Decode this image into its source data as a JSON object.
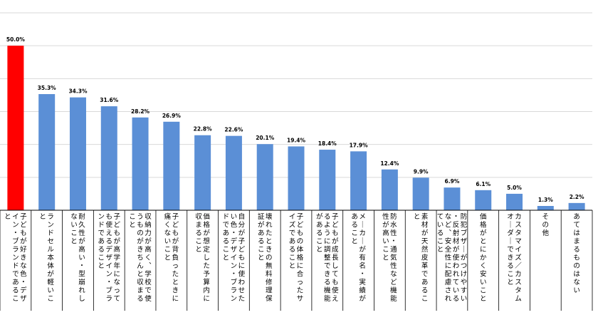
{
  "chart_data": {
    "type": "bar",
    "ylim": [
      0,
      60
    ],
    "grid": true,
    "unit": "%",
    "highlight_color": "#ff0000",
    "bar_color": "#5b8fd6",
    "categories": [
      "子どもが好きな色・デザイン・ブランドであること",
      "ランドセル本体が軽いこと",
      "耐久性が高い・型崩れしないこと",
      "子どもが高学年になっても使えるデザイン・ブランドであること",
      "収納力が高く、学校で使うものがきちんと収まること",
      "子どもが背負ったときに痛くないこと",
      "価格が想定した予算内に収まること",
      "自分が子どもに使わせたい色・デザイン・ブランドであること",
      "壊れたときの無料修理保証があること",
      "子どもの体格に合ったサイズであること",
      "子どもが成長しても使えるように調整できる機能があること",
      "メーカーが有名・実績があること",
      "防水性・通気性など機能性が高いこと",
      "素材が天然皮革であること",
      "防犯ブザーがつけやすい・反射材が使われているなど、安全性に配慮されていること",
      "価格がとにかく安いこと",
      "カスタマイズ／カスタムオーダーできること",
      "その他",
      "あてはまるものはない"
    ],
    "values": [
      50.0,
      35.3,
      34.3,
      31.6,
      28.2,
      26.9,
      22.8,
      22.6,
      20.1,
      19.4,
      18.4,
      17.9,
      12.4,
      9.9,
      6.9,
      6.1,
      5.0,
      1.3,
      2.2
    ],
    "value_labels": [
      "50.0%",
      "35.3%",
      "34.3%",
      "31.6%",
      "28.2%",
      "26.9%",
      "22.8%",
      "22.6%",
      "20.1%",
      "19.4%",
      "18.4%",
      "17.9%",
      "12.4%",
      "9.9%",
      "6.9%",
      "6.1%",
      "5.0%",
      "1.3%",
      "2.2%"
    ],
    "highlight_index": 0
  }
}
